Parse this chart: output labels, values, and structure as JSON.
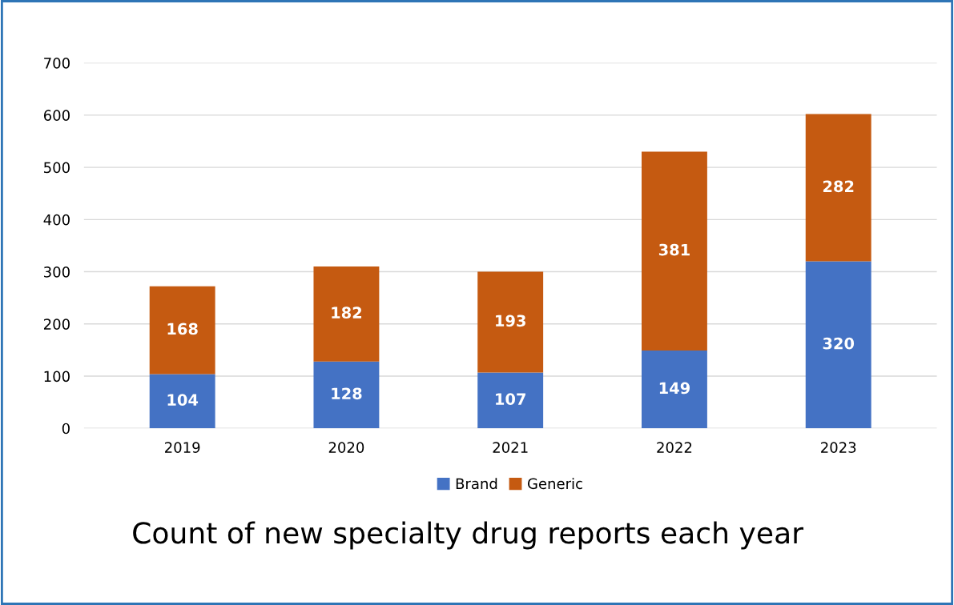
{
  "chart_data": {
    "type": "bar",
    "stacked": true,
    "categories": [
      "2019",
      "2020",
      "2021",
      "2022",
      "2023"
    ],
    "series": [
      {
        "name": "Brand",
        "color": "#4472c4",
        "values": [
          104,
          128,
          107,
          149,
          320
        ]
      },
      {
        "name": "Generic",
        "color": "#c55a11",
        "values": [
          168,
          182,
          193,
          381,
          282
        ]
      }
    ],
    "ylim": [
      0,
      700
    ],
    "yticks": [
      0,
      100,
      200,
      300,
      400,
      500,
      600,
      700
    ],
    "grid": "y",
    "legend": "bottom",
    "data_labels": true,
    "annotations": [
      "Count of new specialty drug reports each year"
    ]
  }
}
